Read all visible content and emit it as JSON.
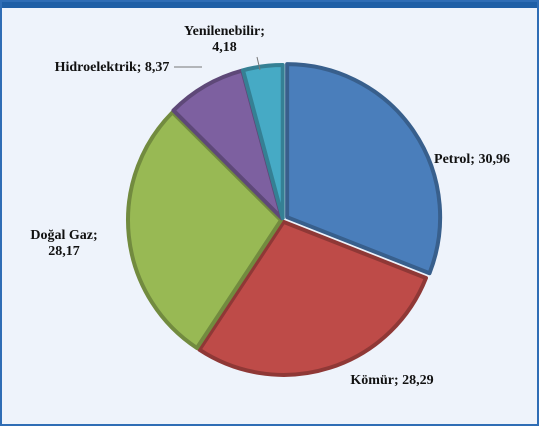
{
  "chart_data": {
    "type": "pie",
    "categories": [
      "Petrol",
      "Kömür",
      "Doğal Gaz",
      "Hidroelektrik",
      "Yenilenebilir"
    ],
    "values": [
      30.96,
      28.29,
      28.17,
      8.37,
      4.18
    ],
    "value_labels": [
      "Petrol; 30,96",
      "Kömür; 28,29",
      "Doğal Gaz; 28,17",
      "Hidroelektrik; 8,37",
      "Yenilenebilir; 4,18"
    ],
    "colors": [
      "#4a7ebb",
      "#be4b48",
      "#98b954",
      "#7d60a0",
      "#46aac5"
    ]
  }
}
